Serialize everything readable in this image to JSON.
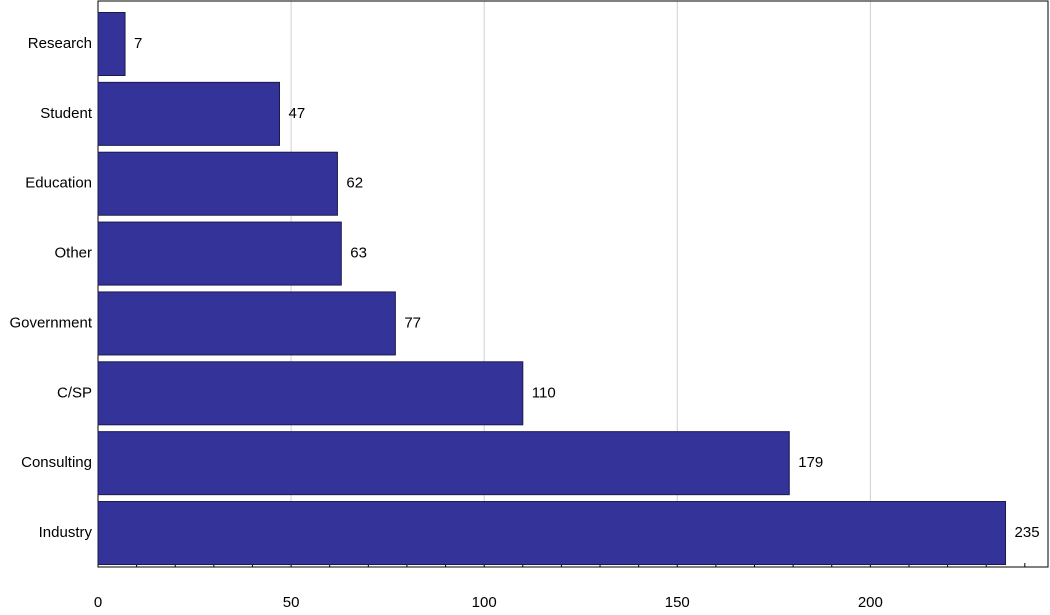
{
  "chart_data": {
    "type": "bar",
    "orientation": "horizontal",
    "categories": [
      "Research",
      "Student",
      "Education",
      "Other",
      "Government",
      "C/SP",
      "Consulting",
      "Industry"
    ],
    "values": [
      7,
      47,
      62,
      63,
      77,
      110,
      179,
      235
    ],
    "color": "#333399",
    "xlim": [
      0,
      246
    ],
    "xticks": [
      0,
      50,
      100,
      150,
      200
    ],
    "xminorticks": [
      10,
      20,
      30,
      40,
      60,
      70,
      80,
      90,
      110,
      120,
      130,
      140,
      160,
      170,
      180,
      190,
      210,
      220,
      230,
      240
    ],
    "grid": true
  }
}
